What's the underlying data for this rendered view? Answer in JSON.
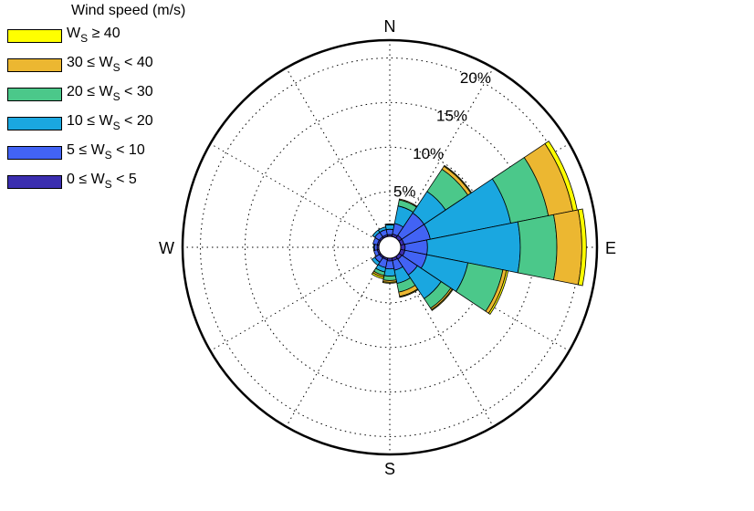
{
  "chart_data": {
    "type": "windrose",
    "legend_title": "Wind speed (m/s)",
    "legend": [
      {
        "pre": "W",
        "sub": "S",
        "post": " ≥ 40",
        "color": "#ffff00"
      },
      {
        "pre": "30 ≤ W",
        "sub": "S",
        "post": " < 40",
        "color": "#ecb731"
      },
      {
        "pre": "20 ≤ W",
        "sub": "S",
        "post": " < 30",
        "color": "#4bc88a"
      },
      {
        "pre": "10 ≤ W",
        "sub": "S",
        "post": " < 20",
        "color": "#1aa7e0"
      },
      {
        "pre": "5 ≤ W",
        "sub": "S",
        "post": " < 10",
        "color": "#4263f4"
      },
      {
        "pre": "0 ≤ W",
        "sub": "S",
        "post": " < 5",
        "color": "#3b2eb0"
      }
    ],
    "directions": {
      "north": "N",
      "east": "E",
      "south": "S",
      "west": "W"
    },
    "ring_values": [
      5,
      10,
      15,
      20
    ],
    "ring_labels": [
      "5%",
      "10%",
      "15%",
      "20%"
    ],
    "max_percent": 22,
    "sector_centers_deg": [
      0,
      22.5,
      45,
      67.5,
      90,
      112.5,
      135,
      157.5,
      180,
      202.5,
      225,
      247.5,
      270,
      292.5,
      315,
      337.5
    ],
    "speed_bins": [
      "0-5",
      "5-10",
      "10-20",
      "20-30",
      "30-40",
      ">=40"
    ],
    "cumulative_percent": [
      [
        0.2,
        0.8,
        1.3,
        1.4,
        1.4,
        1.4
      ],
      [
        0.3,
        1.5,
        3.5,
        4.2,
        4.3,
        4.3
      ],
      [
        0.4,
        3.4,
        6.3,
        9.3,
        9.7,
        9.8
      ],
      [
        0.4,
        3.4,
        12.6,
        16.9,
        19.7,
        20.2
      ],
      [
        0.5,
        3.0,
        13.4,
        17.5,
        20.3,
        20.8
      ],
      [
        0.5,
        3.0,
        7.7,
        11.7,
        12.1,
        12.3
      ],
      [
        0.4,
        2.5,
        5.7,
        7.0,
        7.2,
        7.3
      ],
      [
        0.3,
        1.4,
        2.9,
        3.9,
        4.4,
        4.5
      ],
      [
        0.3,
        1.2,
        2.0,
        2.5,
        2.7,
        2.8
      ],
      [
        0.2,
        1.1,
        1.6,
        2.0,
        2.2,
        2.4
      ],
      [
        0.2,
        0.8,
        1.2,
        1.2,
        1.2,
        1.2
      ],
      [
        0.2,
        0.6,
        0.6,
        0.6,
        0.6,
        0.6
      ],
      [
        0.2,
        0.5,
        0.6,
        0.6,
        0.6,
        0.6
      ],
      [
        0.2,
        0.7,
        0.7,
        0.7,
        0.7,
        0.7
      ],
      [
        0.2,
        0.8,
        1.1,
        1.1,
        1.1,
        1.1
      ],
      [
        0.2,
        0.8,
        1.1,
        1.1,
        1.1,
        1.1
      ]
    ],
    "colors": [
      "#3b2eb0",
      "#4263f4",
      "#1aa7e0",
      "#4bc88a",
      "#ecb731",
      "#ffff00"
    ],
    "grid": "dotted"
  }
}
